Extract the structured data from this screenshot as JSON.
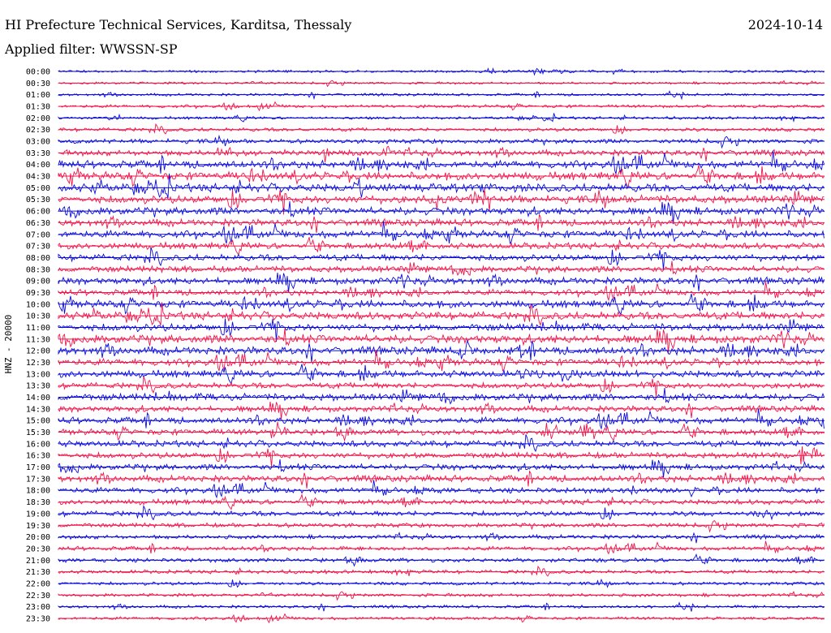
{
  "header": {
    "title": "HI Prefecture Technical Services, Karditsa, Thessaly",
    "date": "2024-10-14",
    "filter_label": "Applied filter: WWSSN-SP"
  },
  "colors": {
    "odd_trace": "#0a0adc",
    "even_trace": "#f0144a",
    "label": "#000000"
  },
  "chart_data": {
    "type": "line",
    "ylabel": "HNZ - 20000",
    "x_unit": "minutes within each 30-minute row",
    "xlim": [
      0,
      30
    ],
    "rows": [
      {
        "time": "00:00",
        "level": 0.15,
        "color": "blue"
      },
      {
        "time": "00:30",
        "level": 0.12,
        "color": "red"
      },
      {
        "time": "01:00",
        "level": 0.15,
        "color": "blue"
      },
      {
        "time": "01:30",
        "level": 0.2,
        "color": "red"
      },
      {
        "time": "02:00",
        "level": 0.18,
        "color": "blue"
      },
      {
        "time": "02:30",
        "level": 0.3,
        "color": "red"
      },
      {
        "time": "03:00",
        "level": 0.4,
        "color": "blue"
      },
      {
        "time": "03:30",
        "level": 0.55,
        "color": "red"
      },
      {
        "time": "04:00",
        "level": 0.8,
        "color": "blue"
      },
      {
        "time": "04:30",
        "level": 0.85,
        "color": "red"
      },
      {
        "time": "05:00",
        "level": 0.9,
        "color": "blue"
      },
      {
        "time": "05:30",
        "level": 0.85,
        "color": "red"
      },
      {
        "time": "06:00",
        "level": 0.8,
        "color": "blue"
      },
      {
        "time": "06:30",
        "level": 0.7,
        "color": "red"
      },
      {
        "time": "07:00",
        "level": 0.75,
        "color": "blue"
      },
      {
        "time": "07:30",
        "level": 0.65,
        "color": "red"
      },
      {
        "time": "08:00",
        "level": 0.7,
        "color": "blue"
      },
      {
        "time": "08:30",
        "level": 0.65,
        "color": "red"
      },
      {
        "time": "09:00",
        "level": 0.7,
        "color": "blue"
      },
      {
        "time": "09:30",
        "level": 0.6,
        "color": "red"
      },
      {
        "time": "10:00",
        "level": 0.8,
        "color": "blue"
      },
      {
        "time": "10:30",
        "level": 0.85,
        "color": "red"
      },
      {
        "time": "11:00",
        "level": 0.8,
        "color": "blue"
      },
      {
        "time": "11:30",
        "level": 0.9,
        "color": "red"
      },
      {
        "time": "12:00",
        "level": 0.85,
        "color": "blue"
      },
      {
        "time": "12:30",
        "level": 0.7,
        "color": "red"
      },
      {
        "time": "13:00",
        "level": 0.75,
        "color": "blue"
      },
      {
        "time": "13:30",
        "level": 0.6,
        "color": "red"
      },
      {
        "time": "14:00",
        "level": 0.75,
        "color": "blue"
      },
      {
        "time": "14:30",
        "level": 0.6,
        "color": "red"
      },
      {
        "time": "15:00",
        "level": 0.65,
        "color": "blue"
      },
      {
        "time": "15:30",
        "level": 0.6,
        "color": "red"
      },
      {
        "time": "16:00",
        "level": 0.65,
        "color": "blue"
      },
      {
        "time": "16:30",
        "level": 0.6,
        "color": "red"
      },
      {
        "time": "17:00",
        "level": 0.6,
        "color": "blue"
      },
      {
        "time": "17:30",
        "level": 0.65,
        "color": "red"
      },
      {
        "time": "18:00",
        "level": 0.55,
        "color": "blue"
      },
      {
        "time": "18:30",
        "level": 0.5,
        "color": "red"
      },
      {
        "time": "19:00",
        "level": 0.5,
        "color": "blue"
      },
      {
        "time": "19:30",
        "level": 0.4,
        "color": "red"
      },
      {
        "time": "20:00",
        "level": 0.35,
        "color": "blue"
      },
      {
        "time": "20:30",
        "level": 0.35,
        "color": "red"
      },
      {
        "time": "21:00",
        "level": 0.35,
        "color": "blue"
      },
      {
        "time": "21:30",
        "level": 0.3,
        "color": "red"
      },
      {
        "time": "22:00",
        "level": 0.25,
        "color": "blue"
      },
      {
        "time": "22:30",
        "level": 0.25,
        "color": "red"
      },
      {
        "time": "23:00",
        "level": 0.2,
        "color": "blue"
      },
      {
        "time": "23:30",
        "level": 0.2,
        "color": "red"
      }
    ]
  }
}
